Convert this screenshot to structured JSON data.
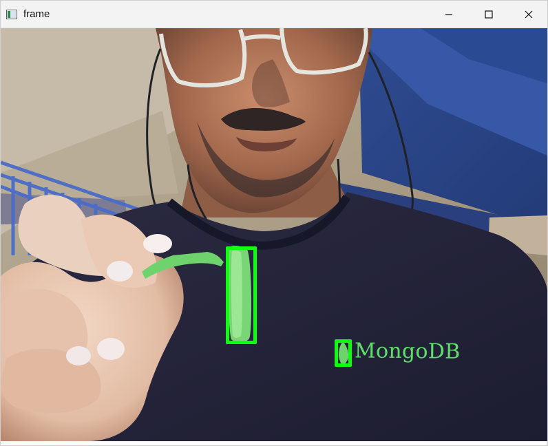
{
  "window": {
    "title": "frame",
    "app_icon": "opencv-window-icon",
    "controls": {
      "minimize_icon": "minimize-icon",
      "maximize_icon": "maximize-icon",
      "close_icon": "close-icon"
    }
  },
  "frame": {
    "detections": [
      {
        "label": "",
        "color": "#10ff10"
      },
      {
        "label": "",
        "color": "#10ff10"
      }
    ],
    "shirt_logo_text": "MongoDB",
    "colors": {
      "detection_box": "#10ff10",
      "marker": "#6ed36c",
      "shirt": "#25243a",
      "wall_blue": "#2f4f95",
      "ceiling": "#c1b59f"
    }
  }
}
